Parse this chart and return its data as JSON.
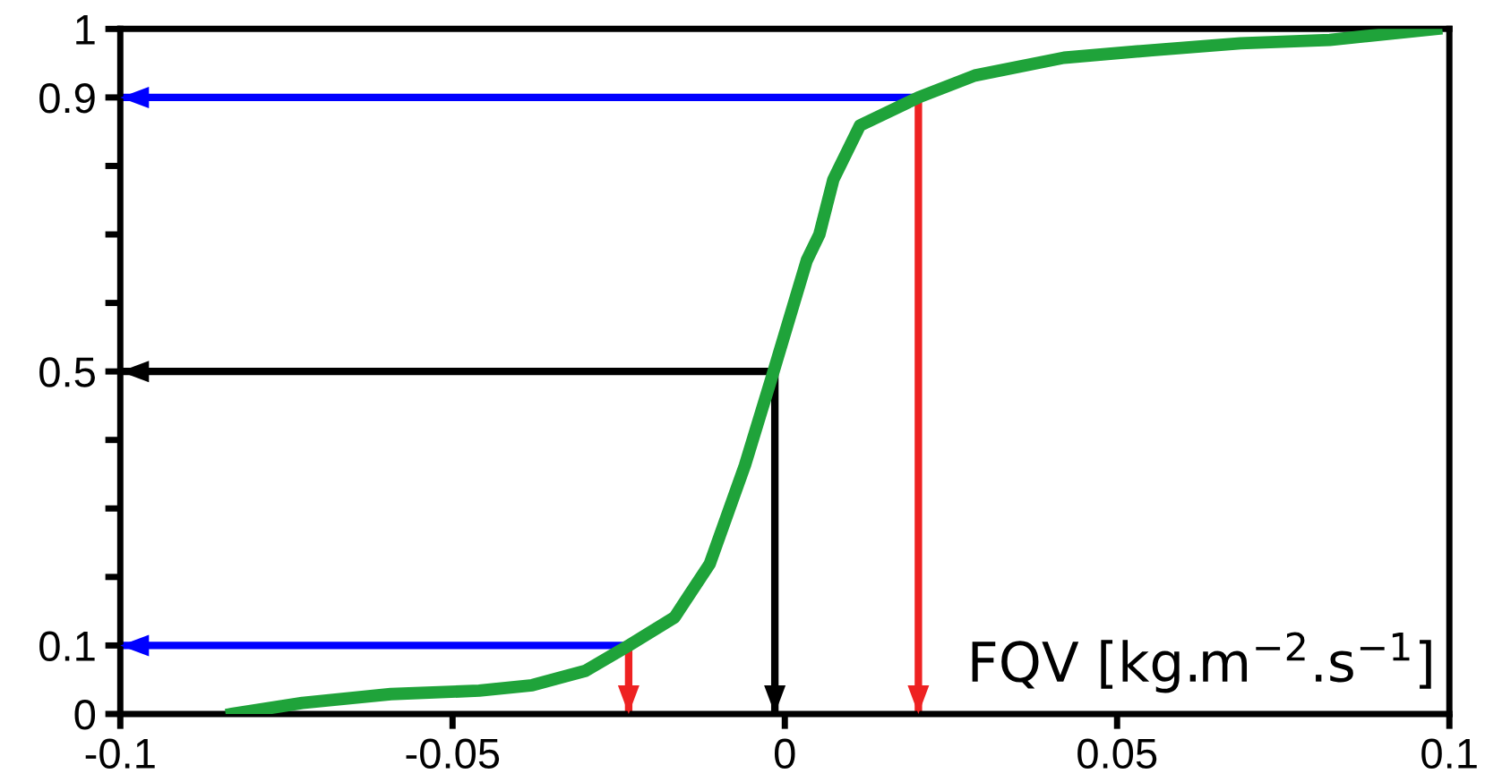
{
  "chart_data": {
    "type": "line",
    "xlabel": "FQV [kg.m$^{−2}$.s$^{−1}$]",
    "xlim": [
      -0.1,
      0.1
    ],
    "xticks": [
      -0.1,
      -0.05,
      0,
      0.05,
      0.1
    ],
    "ylim": [
      0,
      1
    ],
    "yticks": [
      0,
      0.1,
      {
        "value": 0.2,
        "label": null
      },
      {
        "value": 0.3,
        "label": null
      },
      {
        "value": 0.4,
        "label": null
      },
      0.5,
      {
        "value": 0.6,
        "label": null
      },
      {
        "value": 0.7,
        "label": null
      },
      {
        "value": 0.8,
        "label": null
      },
      0.9,
      1
    ],
    "grid": false,
    "legend": false,
    "series": [
      {
        "color": "#1fa33a",
        "marker": "none",
        "x": [
          -0.0832,
          -0.0726,
          -0.0593,
          -0.046,
          -0.038,
          -0.03,
          -0.0235,
          -0.0166,
          -0.0113,
          -0.006,
          -0.0017,
          0.0033,
          0.0052,
          0.0073,
          0.0113,
          0.0201,
          0.0286,
          0.042,
          0.0553,
          0.0686,
          0.082,
          0.098
        ],
        "values": [
          0,
          0.016,
          0.029,
          0.034,
          0.042,
          0.063,
          0.1,
          0.141,
          0.219,
          0.363,
          0.5,
          0.662,
          0.7,
          0.78,
          0.859,
          0.9,
          0.932,
          0.958,
          0.969,
          0.979,
          0.984,
          1.0
        ]
      },
      {
        "color": "#0000ff",
        "x": [
          -0.0235,
          -0.1
        ],
        "values": [
          0.1,
          0.1
        ]
      },
      {
        "color": "#ee2222",
        "x": [
          -0.0235,
          -0.0235
        ],
        "values": [
          0.1,
          0
        ]
      },
      {
        "color": "#000000",
        "x": [
          -0.0015,
          -0.1
        ],
        "values": [
          0.5,
          0.5
        ]
      },
      {
        "color": "#000000",
        "x": [
          -0.0015,
          -0.0015
        ],
        "values": [
          0.5,
          0
        ]
      },
      {
        "color": "#0000ff",
        "x": [
          0.0201,
          -0.1
        ],
        "values": [
          0.9,
          0.9
        ]
      },
      {
        "color": "#ee2222",
        "x": [
          0.0201,
          0.0201
        ],
        "values": [
          0.9,
          0
        ]
      }
    ]
  }
}
